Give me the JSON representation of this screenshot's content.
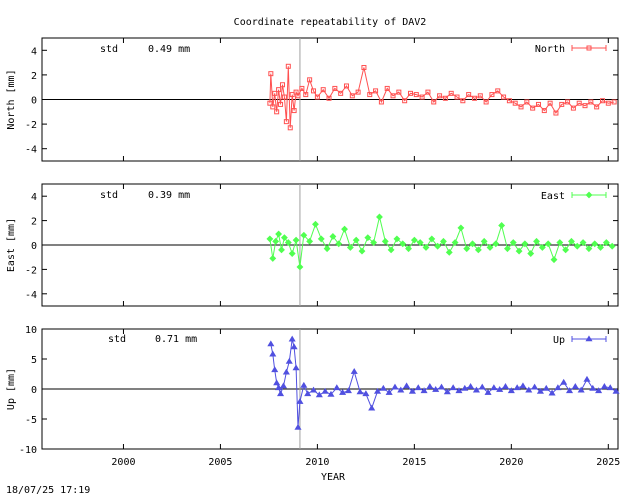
{
  "title": "Coordinate repeatability of DAV2",
  "timestamp": "18/07/25 17:19",
  "chart_data": {
    "type": "scatter",
    "title": "Coordinate repeatability of DAV2",
    "xlabel": "YEAR",
    "xlim": [
      1995.8,
      2025.5
    ],
    "xticks": [
      2000,
      2005,
      2010,
      2015,
      2020,
      2025
    ],
    "vline_x": 2009.1,
    "panels": [
      {
        "key": "north",
        "ylabel": "North [mm]",
        "ylim": [
          -5,
          5
        ],
        "yticks": [
          -4,
          -2,
          0,
          2,
          4
        ],
        "std_label": "std",
        "std_value": "0.49 mm",
        "series": {
          "name": "North",
          "color": "#ff5050",
          "marker": "square",
          "x": [
            2007.55,
            2007.6,
            2007.7,
            2007.8,
            2007.9,
            2008.0,
            2008.1,
            2008.2,
            2008.3,
            2008.4,
            2008.5,
            2008.6,
            2008.7,
            2008.8,
            2008.9,
            2009.0,
            2009.2,
            2009.4,
            2009.6,
            2009.8,
            2010.0,
            2010.3,
            2010.6,
            2010.9,
            2011.2,
            2011.5,
            2011.8,
            2012.1,
            2012.4,
            2012.7,
            2013.0,
            2013.3,
            2013.6,
            2013.9,
            2014.2,
            2014.5,
            2014.8,
            2015.1,
            2015.4,
            2015.7,
            2016.0,
            2016.3,
            2016.6,
            2016.9,
            2017.2,
            2017.5,
            2017.8,
            2018.1,
            2018.4,
            2018.7,
            2019.0,
            2019.3,
            2019.6,
            2019.9,
            2020.2,
            2020.5,
            2020.8,
            2021.1,
            2021.4,
            2021.7,
            2022.0,
            2022.3,
            2022.6,
            2022.9,
            2023.2,
            2023.5,
            2023.8,
            2024.1,
            2024.4,
            2024.7,
            2025.0,
            2025.3
          ],
          "y": [
            -0.3,
            2.1,
            -0.6,
            0.5,
            -1.0,
            0.8,
            -0.4,
            1.2,
            0.2,
            -1.8,
            2.7,
            -2.3,
            0.4,
            -0.9,
            0.6,
            0.3,
            0.9,
            0.4,
            1.6,
            0.7,
            0.2,
            0.8,
            0.1,
            0.9,
            0.5,
            1.1,
            0.3,
            0.6,
            2.6,
            0.4,
            0.7,
            -0.2,
            0.9,
            0.3,
            0.6,
            -0.1,
            0.5,
            0.4,
            0.2,
            0.6,
            -0.2,
            0.3,
            0.1,
            0.5,
            0.2,
            -0.1,
            0.4,
            0.1,
            0.3,
            -0.2,
            0.4,
            0.7,
            0.2,
            -0.1,
            -0.3,
            -0.6,
            -0.2,
            -0.7,
            -0.4,
            -0.9,
            -0.3,
            -1.1,
            -0.4,
            -0.2,
            -0.7,
            -0.3,
            -0.5,
            -0.2,
            -0.6,
            -0.1,
            -0.3,
            -0.2
          ]
        }
      },
      {
        "key": "east",
        "ylabel": "East [mm]",
        "ylim": [
          -5,
          5
        ],
        "yticks": [
          -4,
          -2,
          0,
          2,
          4
        ],
        "std_label": "std",
        "std_value": "0.39 mm",
        "series": {
          "name": "East",
          "color": "#50ff50",
          "marker": "diamond",
          "x": [
            2007.55,
            2007.7,
            2007.85,
            2008.0,
            2008.15,
            2008.3,
            2008.5,
            2008.7,
            2008.9,
            2009.1,
            2009.3,
            2009.6,
            2009.9,
            2010.2,
            2010.5,
            2010.8,
            2011.1,
            2011.4,
            2011.7,
            2012.0,
            2012.3,
            2012.6,
            2012.9,
            2013.2,
            2013.5,
            2013.8,
            2014.1,
            2014.4,
            2014.7,
            2015.0,
            2015.3,
            2015.6,
            2015.9,
            2016.2,
            2016.5,
            2016.8,
            2017.1,
            2017.4,
            2017.7,
            2018.0,
            2018.3,
            2018.6,
            2018.9,
            2019.2,
            2019.5,
            2019.8,
            2020.1,
            2020.4,
            2020.7,
            2021.0,
            2021.3,
            2021.6,
            2021.9,
            2022.2,
            2022.5,
            2022.8,
            2023.1,
            2023.4,
            2023.7,
            2024.0,
            2024.3,
            2024.6,
            2024.9,
            2025.2
          ],
          "y": [
            0.5,
            -1.1,
            0.3,
            0.9,
            -0.4,
            0.6,
            0.2,
            -0.7,
            0.4,
            -1.8,
            0.8,
            0.3,
            1.7,
            0.5,
            -0.3,
            0.7,
            0.1,
            1.3,
            -0.2,
            0.4,
            -0.5,
            0.6,
            0.2,
            2.3,
            0.3,
            -0.4,
            0.5,
            0.1,
            -0.3,
            0.4,
            0.2,
            -0.2,
            0.5,
            -0.1,
            0.3,
            -0.6,
            0.2,
            1.4,
            -0.3,
            0.1,
            -0.4,
            0.3,
            -0.2,
            0.1,
            1.6,
            -0.3,
            0.2,
            -0.5,
            0.1,
            -0.7,
            0.3,
            -0.2,
            0.1,
            -1.2,
            0.2,
            -0.4,
            0.3,
            -0.1,
            0.2,
            -0.3,
            0.1,
            -0.2,
            0.2,
            -0.1
          ]
        }
      },
      {
        "key": "up",
        "ylabel": "Up [mm]",
        "ylim": [
          -10,
          10
        ],
        "yticks": [
          -10,
          -5,
          0,
          5,
          10
        ],
        "std_label": "std",
        "std_value": "0.71 mm",
        "series": {
          "name": "Up",
          "color": "#5050e0",
          "marker": "triangle",
          "x": [
            2007.6,
            2007.7,
            2007.8,
            2007.9,
            2008.0,
            2008.1,
            2008.25,
            2008.4,
            2008.55,
            2008.7,
            2008.8,
            2008.9,
            2009.0,
            2009.1,
            2009.3,
            2009.5,
            2009.8,
            2010.1,
            2010.4,
            2010.7,
            2011.0,
            2011.3,
            2011.6,
            2011.9,
            2012.2,
            2012.5,
            2012.8,
            2013.1,
            2013.4,
            2013.7,
            2014.0,
            2014.3,
            2014.6,
            2014.9,
            2015.2,
            2015.5,
            2015.8,
            2016.1,
            2016.4,
            2016.7,
            2017.0,
            2017.3,
            2017.6,
            2017.9,
            2018.2,
            2018.5,
            2018.8,
            2019.1,
            2019.4,
            2019.7,
            2020.0,
            2020.3,
            2020.6,
            2020.9,
            2021.2,
            2021.5,
            2021.8,
            2022.1,
            2022.4,
            2022.7,
            2023.0,
            2023.3,
            2023.6,
            2023.9,
            2024.2,
            2024.5,
            2024.8,
            2025.1,
            2025.4
          ],
          "y": [
            7.5,
            5.8,
            3.2,
            1.0,
            0.2,
            -0.8,
            0.5,
            2.8,
            4.6,
            8.3,
            7.0,
            3.5,
            -6.4,
            -2.1,
            0.6,
            -0.8,
            -0.2,
            -1.0,
            -0.4,
            -0.9,
            0.2,
            -0.6,
            -0.3,
            2.9,
            -0.5,
            -0.8,
            -3.2,
            -0.4,
            0.1,
            -0.6,
            0.3,
            -0.2,
            0.5,
            -0.4,
            0.2,
            -0.3,
            0.4,
            -0.1,
            0.3,
            -0.5,
            0.2,
            -0.3,
            0.1,
            0.4,
            -0.2,
            0.3,
            -0.6,
            0.2,
            -0.1,
            0.4,
            -0.3,
            0.2,
            0.5,
            -0.2,
            0.3,
            -0.4,
            0.1,
            -0.7,
            0.2,
            1.1,
            -0.3,
            0.4,
            -0.2,
            1.6,
            0.1,
            -0.3,
            0.4,
            0.2,
            -0.4
          ]
        }
      }
    ]
  }
}
